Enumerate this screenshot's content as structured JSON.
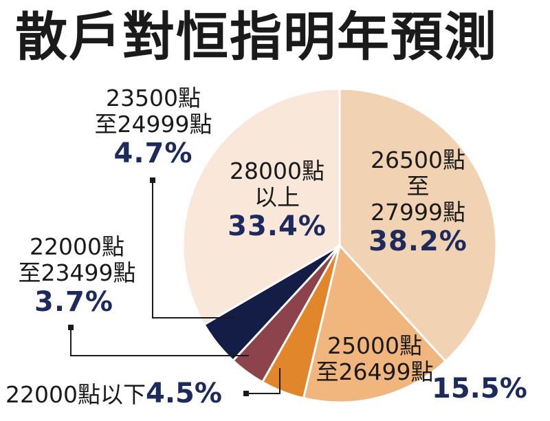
{
  "chart_data": {
    "type": "pie",
    "title": "散戶對恒指明年預測",
    "start_angle_deg": 0,
    "direction": "clockwise",
    "slices": [
      {
        "lines": [
          "26500點",
          "至",
          "27999點"
        ],
        "value": 38.2,
        "value_label": "38.2%",
        "color": "#f1d3b4"
      },
      {
        "lines": [
          "25000點",
          "至26499點"
        ],
        "value": 15.5,
        "value_label": "15.5%",
        "color": "#f0b67d"
      },
      {
        "lines": [
          "22000點以下"
        ],
        "value": 4.5,
        "value_label": "4.5%",
        "color": "#e1862b"
      },
      {
        "lines": [
          "22000點",
          "至23499點"
        ],
        "value": 3.7,
        "value_label": "3.7%",
        "color": "#8c434b"
      },
      {
        "lines": [
          "23500點",
          "至24999點"
        ],
        "value": 4.7,
        "value_label": "4.7%",
        "color": "#141d46"
      },
      {
        "lines": [
          "28000點",
          "以上"
        ],
        "value": 33.4,
        "value_label": "33.4%",
        "color": "#f9e8da"
      }
    ]
  }
}
